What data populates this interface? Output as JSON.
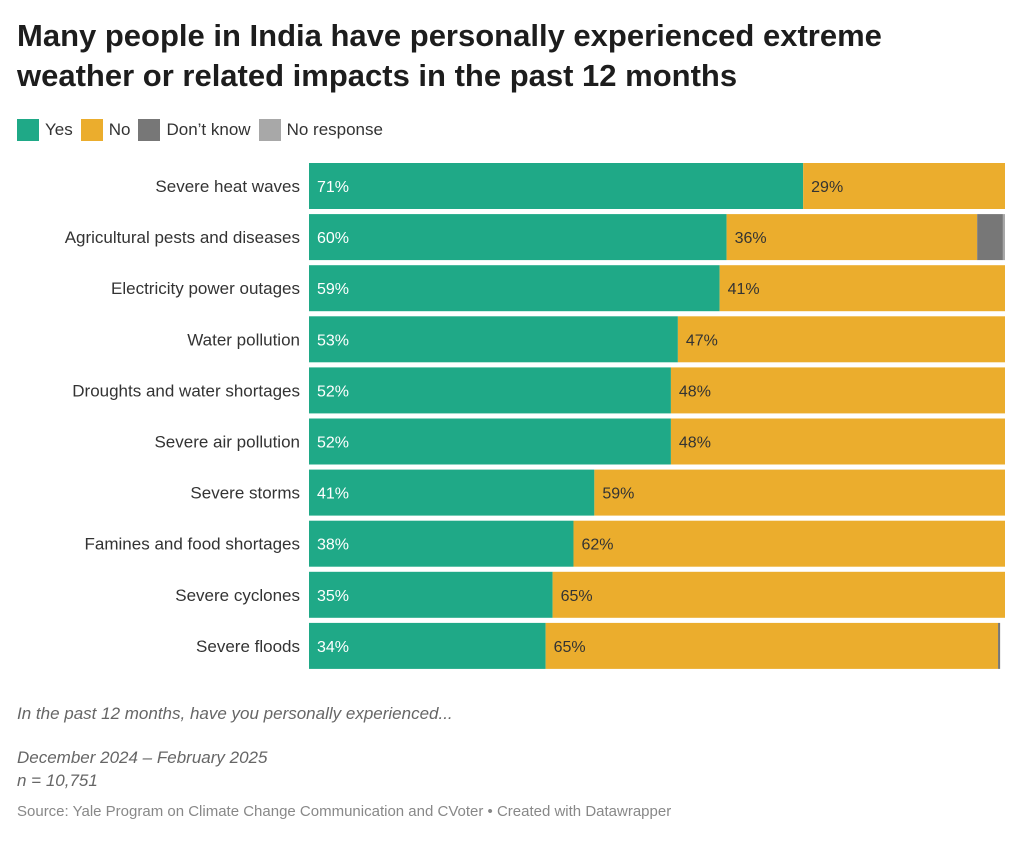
{
  "title": "Many people in India have personally experienced extreme weather or related impacts in the past 12 months",
  "legend": [
    {
      "label": "Yes",
      "color": "#1fa987"
    },
    {
      "label": "No",
      "color": "#ebad2d"
    },
    {
      "label": "Don’t know",
      "color": "#777777"
    },
    {
      "label": "No response",
      "color": "#a8a8a8"
    }
  ],
  "chart_data": {
    "type": "bar",
    "orientation": "horizontal",
    "stacked": true,
    "categories": [
      "Severe heat waves",
      "Agricultural pests and diseases",
      "Electricity power outages",
      "Water pollution",
      "Droughts and water shortages",
      "Severe air pollution",
      "Severe storms",
      "Famines and food shortages",
      "Severe cyclones",
      "Severe floods"
    ],
    "series": [
      {
        "name": "Yes",
        "color": "#1fa987",
        "values": [
          71,
          60,
          59,
          53,
          52,
          52,
          41,
          38,
          35,
          34
        ],
        "labels": [
          "71%",
          "60%",
          "59%",
          "53%",
          "52%",
          "52%",
          "41%",
          "38%",
          "35%",
          "34%"
        ]
      },
      {
        "name": "No",
        "color": "#ebad2d",
        "values": [
          29,
          36,
          41,
          47,
          48,
          48,
          59,
          62,
          65,
          65
        ],
        "labels": [
          "29%",
          "36%",
          "41%",
          "47%",
          "48%",
          "48%",
          "59%",
          "62%",
          "65%",
          "65%"
        ]
      },
      {
        "name": "Don’t know",
        "color": "#777777",
        "values": [
          0.2,
          3.7,
          0.2,
          0.6,
          0.2,
          0.6,
          0.2,
          0.3,
          0.2,
          0.3
        ]
      },
      {
        "name": "No response",
        "color": "#a8a8a8",
        "values": [
          0,
          0.3,
          0,
          0,
          0,
          0,
          0,
          0,
          0,
          0
        ]
      }
    ],
    "xlim": [
      0,
      100
    ],
    "unit": "%"
  },
  "notes": {
    "question": "In the past 12 months, have you personally experienced...",
    "dates": "December 2024 – February 2025",
    "sample": "n = 10,751"
  },
  "source": "Source: Yale Program on Climate Change Communication and CVoter • Created with Datawrapper"
}
